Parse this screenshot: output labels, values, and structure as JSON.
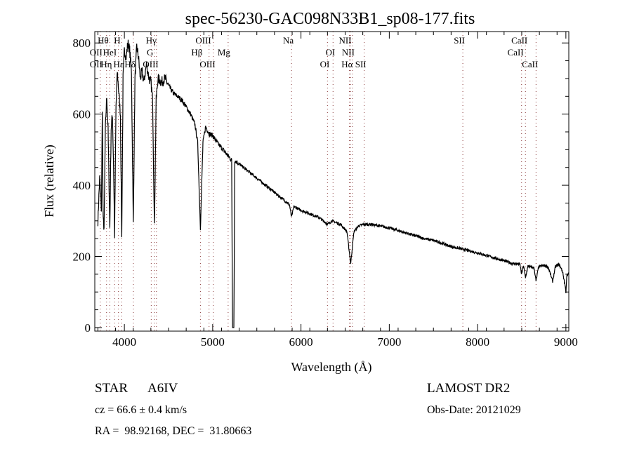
{
  "chart_data": {
    "type": "line",
    "title": "spec-56230-GAC098N33B1_sp08-177.fits",
    "xlabel": "Wavelength (Å)",
    "ylabel": "Flux (relative)",
    "xlim": [
      3665,
      9033
    ],
    "ylim": [
      -10,
      832
    ],
    "xticks": [
      4000,
      5000,
      6000,
      7000,
      8000,
      9000
    ],
    "yticks": [
      0,
      200,
      400,
      600,
      800
    ],
    "series": [
      {
        "name": "spectrum",
        "points": [
          [
            3700,
            300
          ],
          [
            3720,
            420
          ],
          [
            3740,
            330
          ],
          [
            3750,
            620
          ],
          [
            3760,
            300
          ],
          [
            3770,
            280
          ],
          [
            3785,
            560
          ],
          [
            3800,
            650
          ],
          [
            3815,
            560
          ],
          [
            3835,
            280
          ],
          [
            3850,
            560
          ],
          [
            3865,
            600
          ],
          [
            3880,
            420
          ],
          [
            3889,
            260
          ],
          [
            3905,
            620
          ],
          [
            3920,
            720
          ],
          [
            3940,
            650
          ],
          [
            3955,
            600
          ],
          [
            3970,
            250
          ],
          [
            3985,
            700
          ],
          [
            4000,
            780
          ],
          [
            4020,
            760
          ],
          [
            4040,
            800
          ],
          [
            4060,
            780
          ],
          [
            4080,
            720
          ],
          [
            4101,
            290
          ],
          [
            4120,
            700
          ],
          [
            4140,
            790
          ],
          [
            4160,
            760
          ],
          [
            4180,
            700
          ],
          [
            4200,
            720
          ],
          [
            4220,
            690
          ],
          [
            4250,
            740
          ],
          [
            4280,
            700
          ],
          [
            4300,
            690
          ],
          [
            4320,
            640
          ],
          [
            4340,
            280
          ],
          [
            4360,
            640
          ],
          [
            4380,
            700
          ],
          [
            4420,
            690
          ],
          [
            4460,
            700
          ],
          [
            4500,
            680
          ],
          [
            4550,
            660
          ],
          [
            4600,
            650
          ],
          [
            4650,
            640
          ],
          [
            4700,
            620
          ],
          [
            4750,
            600
          ],
          [
            4800,
            570
          ],
          [
            4830,
            520
          ],
          [
            4861,
            280
          ],
          [
            4890,
            520
          ],
          [
            4920,
            565
          ],
          [
            4960,
            545
          ],
          [
            5000,
            540
          ],
          [
            5050,
            520
          ],
          [
            5100,
            505
          ],
          [
            5150,
            490
          ],
          [
            5200,
            475
          ],
          [
            5215,
            470
          ],
          [
            5225,
            0
          ],
          [
            5240,
            0
          ],
          [
            5250,
            470
          ],
          [
            5300,
            460
          ],
          [
            5400,
            440
          ],
          [
            5500,
            420
          ],
          [
            5600,
            400
          ],
          [
            5700,
            380
          ],
          [
            5800,
            360
          ],
          [
            5870,
            345
          ],
          [
            5893,
            310
          ],
          [
            5920,
            340
          ],
          [
            6000,
            330
          ],
          [
            6100,
            320
          ],
          [
            6200,
            310
          ],
          [
            6280,
            295
          ],
          [
            6300,
            290
          ],
          [
            6350,
            300
          ],
          [
            6450,
            290
          ],
          [
            6520,
            270
          ],
          [
            6563,
            180
          ],
          [
            6600,
            270
          ],
          [
            6650,
            285
          ],
          [
            6700,
            290
          ],
          [
            6800,
            290
          ],
          [
            6900,
            285
          ],
          [
            7000,
            280
          ],
          [
            7200,
            265
          ],
          [
            7400,
            250
          ],
          [
            7500,
            245
          ],
          [
            7700,
            228
          ],
          [
            8000,
            210
          ],
          [
            8200,
            195
          ],
          [
            8400,
            180
          ],
          [
            8480,
            178
          ],
          [
            8498,
            150
          ],
          [
            8520,
            175
          ],
          [
            8542,
            140
          ],
          [
            8570,
            172
          ],
          [
            8600,
            170
          ],
          [
            8640,
            168
          ],
          [
            8662,
            130
          ],
          [
            8690,
            170
          ],
          [
            8750,
            175
          ],
          [
            8800,
            170
          ],
          [
            8850,
            130
          ],
          [
            8880,
            170
          ],
          [
            8920,
            178
          ],
          [
            8960,
            160
          ],
          [
            8990,
            120
          ],
          [
            9000,
            100
          ],
          [
            9010,
            145
          ],
          [
            9030,
            150
          ]
        ]
      }
    ],
    "line_markers": [
      {
        "label": "Hθ",
        "wavelength": 3798,
        "row": 1
      },
      {
        "label": "H",
        "wavelength": 3933,
        "row": 1
      },
      {
        "label": "Hγ",
        "wavelength": 4340,
        "row": 1
      },
      {
        "label": "OIII",
        "wavelength": 4959,
        "row": 1
      },
      {
        "label": "Na",
        "wavelength": 5893,
        "row": 1
      },
      {
        "label": "NII",
        "wavelength": 6548,
        "row": 1
      },
      {
        "label": "SII",
        "wavelength": 7833,
        "row": 1
      },
      {
        "label": "CaII",
        "wavelength": 8542,
        "row": 1
      },
      {
        "label": "OII",
        "wavelength": 3727,
        "row": 2
      },
      {
        "label": "HeI",
        "wavelength": 3889,
        "row": 2
      },
      {
        "label": "G",
        "wavelength": 4304,
        "row": 2
      },
      {
        "label": "Hβ",
        "wavelength": 4861,
        "row": 2
      },
      {
        "label": "Mg",
        "wavelength": 5175,
        "row": 2
      },
      {
        "label": "OI",
        "wavelength": 6363,
        "row": 2
      },
      {
        "label": "NII",
        "wavelength": 6583,
        "row": 2
      },
      {
        "label": "CaII",
        "wavelength": 8498,
        "row": 2
      },
      {
        "label": "OII",
        "wavelength": 3727,
        "row": 3
      },
      {
        "label": "Hη",
        "wavelength": 3835,
        "row": 3
      },
      {
        "label": "Hε",
        "wavelength": 3970,
        "row": 3
      },
      {
        "label": "Hδ",
        "wavelength": 4102,
        "row": 3
      },
      {
        "label": "OIII",
        "wavelength": 4363,
        "row": 3
      },
      {
        "label": "OIII",
        "wavelength": 5007,
        "row": 3
      },
      {
        "label": "OI",
        "wavelength": 6300,
        "row": 3
      },
      {
        "label": "Hα",
        "wavelength": 6563,
        "row": 3
      },
      {
        "label": "SII",
        "wavelength": 6716,
        "row": 3
      },
      {
        "label": "CaII",
        "wavelength": 8662,
        "row": 3
      }
    ]
  },
  "info": {
    "class_label": "STAR",
    "subclass": "A6IV",
    "cz": "cz = 66.6 ± 0.4 km/s",
    "coords": "RA =  98.92168, DEC =  31.80663",
    "survey": "LAMOST DR2",
    "obs_date": "Obs-Date: 20121029"
  },
  "colors": {
    "spectrum": "#000000",
    "marker": "#8b3a3a"
  }
}
